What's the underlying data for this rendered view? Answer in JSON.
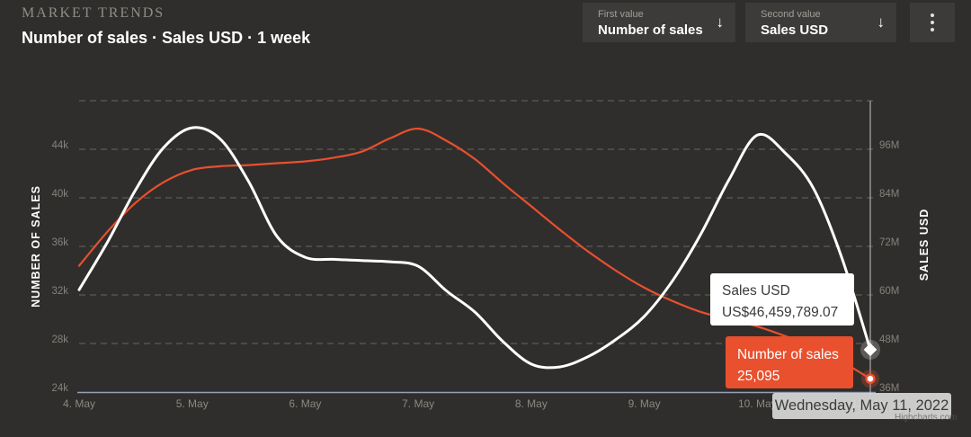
{
  "header": {
    "eyebrow": "MARKET TRENDS",
    "title": "Number of sales · Sales USD · 1 week"
  },
  "controls": {
    "first": {
      "label": "First value",
      "value": "Number of sales",
      "arrow_icon": "↓"
    },
    "second": {
      "label": "Second value",
      "value": "Sales USD",
      "arrow_icon": "↓"
    },
    "menu_icon": "kebab-vertical"
  },
  "tooltips": {
    "sales_usd": {
      "title": "Sales USD",
      "value": "US$46,459,789.07"
    },
    "number_of_sales": {
      "title": "Number of sales",
      "value": "25,095"
    },
    "date": "Wednesday, May 11, 2022"
  },
  "credits": "Highcharts.com",
  "colors": {
    "background": "#302e2c",
    "panel": "#3d3b39",
    "accent_orange": "#e8502e",
    "series_white": "#ffffff",
    "grid": "#56534e",
    "axis_line": "#97a0b2",
    "crosshair": "#c6c6c6",
    "tick_text": "#85817c",
    "x_label_text": "#8b8781",
    "axis_title_text": "#ffffff"
  },
  "chart_data": {
    "type": "line",
    "title": "Number of sales · Sales USD · 1 week",
    "grid": "dashed-horizontal",
    "x_labels": [
      "4. May",
      "5. May",
      "6. May",
      "7. May",
      "8. May",
      "9. May",
      "10. May",
      "11. May"
    ],
    "left_axis": {
      "title": "NUMBER OF SALES",
      "min": 24000,
      "max": 48000,
      "ticks": [
        {
          "value": 24000,
          "label": "24k"
        },
        {
          "value": 28000,
          "label": "28k"
        },
        {
          "value": 32000,
          "label": "32k"
        },
        {
          "value": 36000,
          "label": "36k"
        },
        {
          "value": 40000,
          "label": "40k"
        },
        {
          "value": 44000,
          "label": "44k"
        },
        {
          "value": 48000,
          "label": ""
        }
      ]
    },
    "right_axis": {
      "title": "SALES USD",
      "min": 36,
      "max": 108,
      "unit": "M",
      "ticks": [
        {
          "value": 36,
          "label": "36M"
        },
        {
          "value": 48,
          "label": "48M"
        },
        {
          "value": 60,
          "label": "60M"
        },
        {
          "value": 72,
          "label": "72M"
        },
        {
          "value": 84,
          "label": "84M"
        },
        {
          "value": 96,
          "label": "96M"
        }
      ]
    },
    "series": [
      {
        "name": "Number of sales",
        "axis": "left",
        "color": "#e8502e",
        "width": 2.2,
        "marker": "circle-ring",
        "points": [
          [
            0.0,
            34400
          ],
          [
            0.25,
            37200
          ],
          [
            0.5,
            39600
          ],
          [
            0.75,
            41300
          ],
          [
            1.0,
            42300
          ],
          [
            1.25,
            42600
          ],
          [
            1.5,
            42700
          ],
          [
            1.75,
            42850
          ],
          [
            2.0,
            43000
          ],
          [
            2.25,
            43300
          ],
          [
            2.5,
            43800
          ],
          [
            2.75,
            44900
          ],
          [
            3.0,
            45700
          ],
          [
            3.25,
            44700
          ],
          [
            3.5,
            43200
          ],
          [
            3.75,
            41200
          ],
          [
            4.0,
            39300
          ],
          [
            4.25,
            37400
          ],
          [
            4.5,
            35600
          ],
          [
            4.75,
            34000
          ],
          [
            5.0,
            32600
          ],
          [
            5.25,
            31500
          ],
          [
            5.5,
            30600
          ],
          [
            5.75,
            30000
          ],
          [
            6.0,
            29400
          ],
          [
            6.25,
            28600
          ],
          [
            6.5,
            27700
          ],
          [
            6.75,
            26500
          ],
          [
            7.0,
            25095
          ]
        ]
      },
      {
        "name": "Sales USD",
        "axis": "right",
        "color": "#ffffff",
        "width": 3,
        "marker": "diamond",
        "points": [
          [
            0.0,
            61.3
          ],
          [
            0.25,
            73.0
          ],
          [
            0.5,
            86.0
          ],
          [
            0.75,
            96.5
          ],
          [
            1.0,
            101.3
          ],
          [
            1.25,
            98.5
          ],
          [
            1.5,
            88.0
          ],
          [
            1.75,
            74.5
          ],
          [
            2.0,
            69.3
          ],
          [
            2.25,
            68.8
          ],
          [
            2.5,
            68.5
          ],
          [
            2.75,
            68.2
          ],
          [
            3.0,
            67.1
          ],
          [
            3.25,
            61.0
          ],
          [
            3.5,
            55.8
          ],
          [
            3.75,
            48.5
          ],
          [
            4.0,
            42.9
          ],
          [
            4.25,
            42.2
          ],
          [
            4.5,
            44.7
          ],
          [
            4.75,
            49.0
          ],
          [
            5.0,
            54.7
          ],
          [
            5.25,
            63.5
          ],
          [
            5.5,
            75.0
          ],
          [
            5.75,
            88.5
          ],
          [
            6.0,
            99.5
          ],
          [
            6.25,
            95.0
          ],
          [
            6.5,
            86.2
          ],
          [
            6.75,
            69.0
          ],
          [
            7.0,
            46.459789
          ]
        ]
      }
    ],
    "hover": {
      "day_index": 7,
      "date_label": "Wednesday, May 11, 2022",
      "sales_usd_value": 46459789.07,
      "number_of_sales_value": 25095
    }
  }
}
